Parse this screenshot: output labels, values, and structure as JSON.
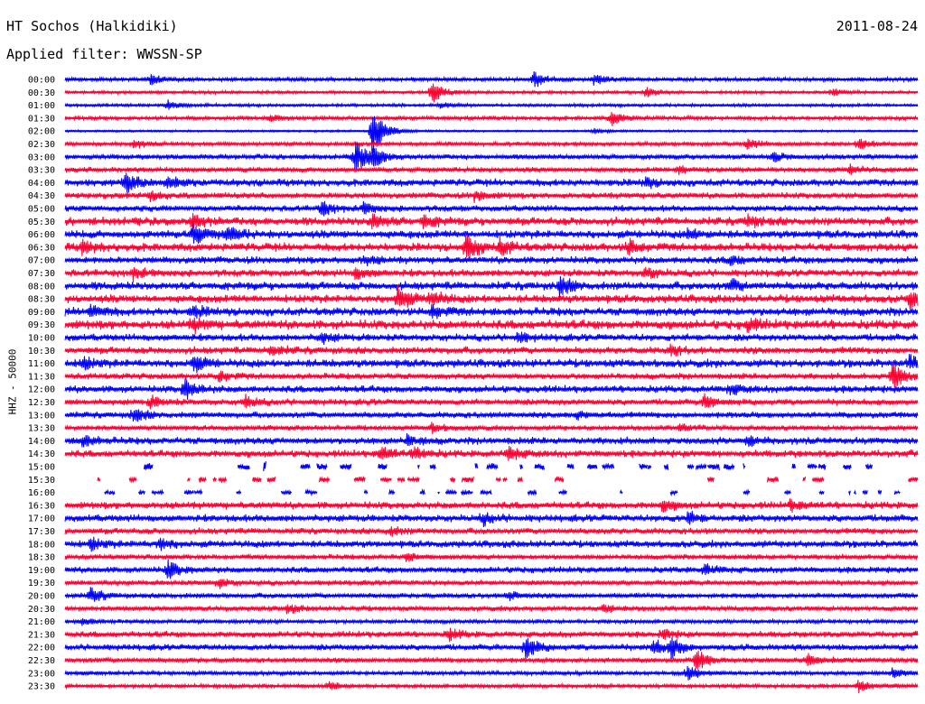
{
  "header": {
    "station": "HT Sochos (Halkidiki)",
    "date": "2011-08-24",
    "filter": "Applied filter: WWSSN-SP"
  },
  "chart_data": {
    "type": "line",
    "title": "HT Sochos (Halkidiki)",
    "subtitle": "Applied filter: WWSSN-SP",
    "ylabel": "HHZ - 50000",
    "xlabel": "",
    "grid": false,
    "legend": "none",
    "colors": {
      "even_row": "#0000ff",
      "odd_row": "#ff0033"
    },
    "rows": [
      {
        "label": "00:00",
        "amp": 2,
        "events": [
          {
            "x": 0.1,
            "a": 5
          },
          {
            "x": 0.55,
            "a": 9
          },
          {
            "x": 0.62,
            "a": 6
          }
        ],
        "gaps": false
      },
      {
        "label": "00:30",
        "amp": 1.5,
        "events": [
          {
            "x": 0.43,
            "a": 14
          },
          {
            "x": 0.68,
            "a": 6
          },
          {
            "x": 0.9,
            "a": 4
          }
        ],
        "gaps": false
      },
      {
        "label": "01:00",
        "amp": 1.5,
        "events": [
          {
            "x": 0.12,
            "a": 5
          },
          {
            "x": 0.44,
            "a": 3
          }
        ],
        "gaps": false
      },
      {
        "label": "01:30",
        "amp": 2,
        "events": [
          {
            "x": 0.24,
            "a": 5
          },
          {
            "x": 0.64,
            "a": 8
          }
        ],
        "gaps": false
      },
      {
        "label": "02:00",
        "amp": 1,
        "events": [
          {
            "x": 0.36,
            "a": 30
          },
          {
            "x": 0.62,
            "a": 3
          }
        ],
        "gaps": false
      },
      {
        "label": "02:30",
        "amp": 2,
        "events": [
          {
            "x": 0.08,
            "a": 5
          },
          {
            "x": 0.8,
            "a": 6
          },
          {
            "x": 0.93,
            "a": 6
          }
        ],
        "gaps": false
      },
      {
        "label": "03:00",
        "amp": 2.5,
        "events": [
          {
            "x": 0.34,
            "a": 18
          },
          {
            "x": 0.36,
            "a": 10
          },
          {
            "x": 0.83,
            "a": 5
          }
        ],
        "gaps": false
      },
      {
        "label": "03:30",
        "amp": 2.5,
        "events": [
          {
            "x": 0.72,
            "a": 5
          },
          {
            "x": 0.92,
            "a": 5
          }
        ],
        "gaps": false
      },
      {
        "label": "04:00",
        "amp": 3.5,
        "events": [
          {
            "x": 0.07,
            "a": 12
          },
          {
            "x": 0.12,
            "a": 5
          },
          {
            "x": 0.68,
            "a": 5
          }
        ],
        "gaps": false
      },
      {
        "label": "04:30",
        "amp": 3,
        "events": [
          {
            "x": 0.1,
            "a": 6
          },
          {
            "x": 0.48,
            "a": 6
          }
        ],
        "gaps": false
      },
      {
        "label": "05:00",
        "amp": 3,
        "events": [
          {
            "x": 0.3,
            "a": 8
          },
          {
            "x": 0.35,
            "a": 6
          }
        ],
        "gaps": false
      },
      {
        "label": "05:30",
        "amp": 4,
        "events": [
          {
            "x": 0.15,
            "a": 8
          },
          {
            "x": 0.36,
            "a": 8
          },
          {
            "x": 0.42,
            "a": 7
          },
          {
            "x": 0.8,
            "a": 6
          }
        ],
        "gaps": false
      },
      {
        "label": "06:00",
        "amp": 4,
        "events": [
          {
            "x": 0.15,
            "a": 12
          },
          {
            "x": 0.19,
            "a": 8
          },
          {
            "x": 0.73,
            "a": 5
          }
        ],
        "gaps": false
      },
      {
        "label": "06:30",
        "amp": 4,
        "events": [
          {
            "x": 0.02,
            "a": 7
          },
          {
            "x": 0.47,
            "a": 14
          },
          {
            "x": 0.51,
            "a": 8
          },
          {
            "x": 0.66,
            "a": 8
          }
        ],
        "gaps": false
      },
      {
        "label": "07:00",
        "amp": 3.5,
        "events": [
          {
            "x": 0.35,
            "a": 5
          },
          {
            "x": 0.78,
            "a": 5
          }
        ],
        "gaps": false
      },
      {
        "label": "07:30",
        "amp": 3.5,
        "events": [
          {
            "x": 0.08,
            "a": 6
          },
          {
            "x": 0.34,
            "a": 6
          },
          {
            "x": 0.68,
            "a": 6
          }
        ],
        "gaps": false
      },
      {
        "label": "08:00",
        "amp": 4,
        "events": [
          {
            "x": 0.58,
            "a": 10
          },
          {
            "x": 0.78,
            "a": 6
          }
        ],
        "gaps": false
      },
      {
        "label": "08:30",
        "amp": 4,
        "events": [
          {
            "x": 0.39,
            "a": 14
          },
          {
            "x": 0.43,
            "a": 7
          },
          {
            "x": 0.99,
            "a": 9
          }
        ],
        "gaps": false
      },
      {
        "label": "09:00",
        "amp": 4,
        "events": [
          {
            "x": 0.03,
            "a": 7
          },
          {
            "x": 0.15,
            "a": 6
          },
          {
            "x": 0.43,
            "a": 7
          }
        ],
        "gaps": false
      },
      {
        "label": "09:30",
        "amp": 4.5,
        "events": [
          {
            "x": 0.15,
            "a": 6
          },
          {
            "x": 0.8,
            "a": 6
          }
        ],
        "gaps": false
      },
      {
        "label": "10:00",
        "amp": 3.5,
        "events": [
          {
            "x": 0.3,
            "a": 5
          },
          {
            "x": 0.53,
            "a": 5
          }
        ],
        "gaps": false
      },
      {
        "label": "10:30",
        "amp": 3.5,
        "events": [
          {
            "x": 0.24,
            "a": 6
          },
          {
            "x": 0.71,
            "a": 5
          }
        ],
        "gaps": false
      },
      {
        "label": "11:00",
        "amp": 4,
        "events": [
          {
            "x": 0.02,
            "a": 7
          },
          {
            "x": 0.15,
            "a": 9
          },
          {
            "x": 0.99,
            "a": 6
          }
        ],
        "gaps": false
      },
      {
        "label": "11:30",
        "amp": 3,
        "events": [
          {
            "x": 0.18,
            "a": 6
          },
          {
            "x": 0.97,
            "a": 15
          }
        ],
        "gaps": false
      },
      {
        "label": "12:00",
        "amp": 3.5,
        "events": [
          {
            "x": 0.14,
            "a": 11
          },
          {
            "x": 0.78,
            "a": 5
          }
        ],
        "gaps": false
      },
      {
        "label": "12:30",
        "amp": 3,
        "events": [
          {
            "x": 0.1,
            "a": 6
          },
          {
            "x": 0.21,
            "a": 7
          },
          {
            "x": 0.75,
            "a": 8
          }
        ],
        "gaps": false
      },
      {
        "label": "13:00",
        "amp": 3,
        "events": [
          {
            "x": 0.08,
            "a": 8
          },
          {
            "x": 0.6,
            "a": 4
          }
        ],
        "gaps": false
      },
      {
        "label": "13:30",
        "amp": 2.5,
        "events": [
          {
            "x": 0.43,
            "a": 5
          },
          {
            "x": 0.72,
            "a": 4
          }
        ],
        "gaps": false
      },
      {
        "label": "14:00",
        "amp": 3.5,
        "events": [
          {
            "x": 0.02,
            "a": 6
          },
          {
            "x": 0.4,
            "a": 5
          },
          {
            "x": 0.8,
            "a": 5
          }
        ],
        "gaps": false
      },
      {
        "label": "14:30",
        "amp": 3.5,
        "events": [
          {
            "x": 0.37,
            "a": 7
          },
          {
            "x": 0.41,
            "a": 6
          },
          {
            "x": 0.52,
            "a": 7
          }
        ],
        "gaps": false
      },
      {
        "label": "15:00",
        "amp": 3,
        "events": [
          {
            "x": 0.22,
            "a": 7
          },
          {
            "x": 0.35,
            "a": 5
          }
        ],
        "gaps": true
      },
      {
        "label": "15:30",
        "amp": 2.5,
        "events": [],
        "gaps": true
      },
      {
        "label": "16:00",
        "amp": 2,
        "events": [],
        "gaps": true
      },
      {
        "label": "16:30",
        "amp": 3.5,
        "events": [
          {
            "x": 0.7,
            "a": 6
          },
          {
            "x": 0.85,
            "a": 5
          }
        ],
        "gaps": false
      },
      {
        "label": "17:00",
        "amp": 3.5,
        "events": [
          {
            "x": 0.49,
            "a": 6
          },
          {
            "x": 0.73,
            "a": 6
          }
        ],
        "gaps": false
      },
      {
        "label": "17:30",
        "amp": 3,
        "events": [
          {
            "x": 0.38,
            "a": 5
          }
        ],
        "gaps": false
      },
      {
        "label": "18:00",
        "amp": 3.5,
        "events": [
          {
            "x": 0.03,
            "a": 7
          },
          {
            "x": 0.11,
            "a": 6
          }
        ],
        "gaps": false
      },
      {
        "label": "18:30",
        "amp": 2.5,
        "events": [
          {
            "x": 0.4,
            "a": 4
          }
        ],
        "gaps": false
      },
      {
        "label": "19:00",
        "amp": 3,
        "events": [
          {
            "x": 0.12,
            "a": 10
          },
          {
            "x": 0.75,
            "a": 6
          }
        ],
        "gaps": false
      },
      {
        "label": "19:30",
        "amp": 2.5,
        "events": [
          {
            "x": 0.18,
            "a": 5
          }
        ],
        "gaps": false
      },
      {
        "label": "20:00",
        "amp": 2.5,
        "events": [
          {
            "x": 0.03,
            "a": 8
          },
          {
            "x": 0.52,
            "a": 5
          }
        ],
        "gaps": false
      },
      {
        "label": "20:30",
        "amp": 2.5,
        "events": [
          {
            "x": 0.26,
            "a": 5
          },
          {
            "x": 0.63,
            "a": 5
          }
        ],
        "gaps": false
      },
      {
        "label": "21:00",
        "amp": 2,
        "events": [
          {
            "x": 0.02,
            "a": 4
          }
        ],
        "gaps": false
      },
      {
        "label": "21:30",
        "amp": 3,
        "events": [
          {
            "x": 0.45,
            "a": 6
          },
          {
            "x": 0.7,
            "a": 5
          }
        ],
        "gaps": false
      },
      {
        "label": "22:00",
        "amp": 3,
        "events": [
          {
            "x": 0.54,
            "a": 12
          },
          {
            "x": 0.69,
            "a": 8
          },
          {
            "x": 0.71,
            "a": 10
          }
        ],
        "gaps": false
      },
      {
        "label": "22:30",
        "amp": 2.5,
        "events": [
          {
            "x": 0.74,
            "a": 14
          },
          {
            "x": 0.87,
            "a": 7
          }
        ],
        "gaps": false
      },
      {
        "label": "23:00",
        "amp": 2,
        "events": [
          {
            "x": 0.73,
            "a": 8
          },
          {
            "x": 0.97,
            "a": 5
          }
        ],
        "gaps": false
      },
      {
        "label": "23:30",
        "amp": 2,
        "events": [
          {
            "x": 0.31,
            "a": 4
          },
          {
            "x": 0.93,
            "a": 7
          }
        ],
        "gaps": false
      }
    ]
  }
}
